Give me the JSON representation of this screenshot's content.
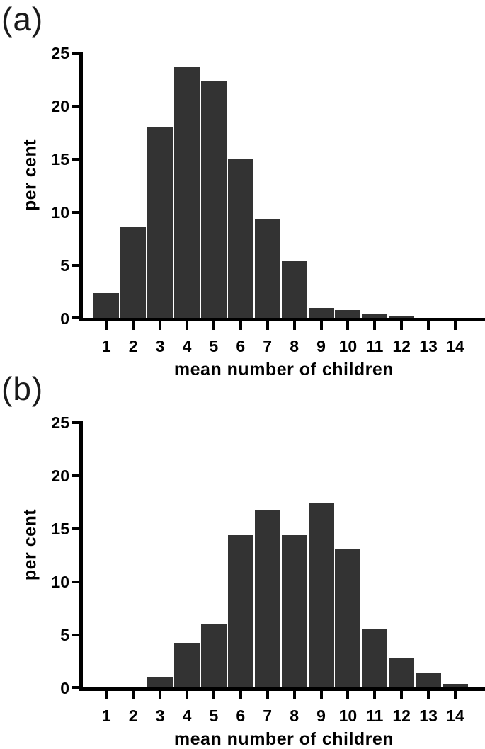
{
  "figure_title": "",
  "colors": {
    "bar": "#333333",
    "axis": "#000000",
    "background": "#ffffff",
    "text": "#000000"
  },
  "chart_data": [
    {
      "type": "bar",
      "panel_label": "(a)",
      "ylabel": "per cent",
      "xlabel": "mean number of children",
      "categories": [
        "1",
        "2",
        "3",
        "4",
        "5",
        "6",
        "7",
        "8",
        "9",
        "10",
        "11",
        "12",
        "13",
        "14"
      ],
      "values": [
        2.3,
        8.5,
        18.0,
        23.6,
        22.3,
        14.9,
        9.3,
        5.3,
        0.9,
        0.7,
        0.35,
        0.1,
        0,
        0
      ],
      "yticks": [
        0,
        5,
        10,
        15,
        20,
        25
      ],
      "ylim": [
        0,
        25
      ],
      "grid": false,
      "legend": "none"
    },
    {
      "type": "bar",
      "panel_label": "(b)",
      "ylabel": "per cent",
      "xlabel": "mean number of children",
      "categories": [
        "1",
        "2",
        "3",
        "4",
        "5",
        "6",
        "7",
        "8",
        "9",
        "10",
        "11",
        "12",
        "13",
        "14"
      ],
      "values": [
        0,
        0,
        0.9,
        4.2,
        5.9,
        14.3,
        16.7,
        14.3,
        17.3,
        13.0,
        5.5,
        2.7,
        1.4,
        0.3
      ],
      "yticks": [
        0,
        5,
        10,
        15,
        20,
        25
      ],
      "ylim": [
        0,
        25
      ],
      "grid": false,
      "legend": "none"
    }
  ]
}
